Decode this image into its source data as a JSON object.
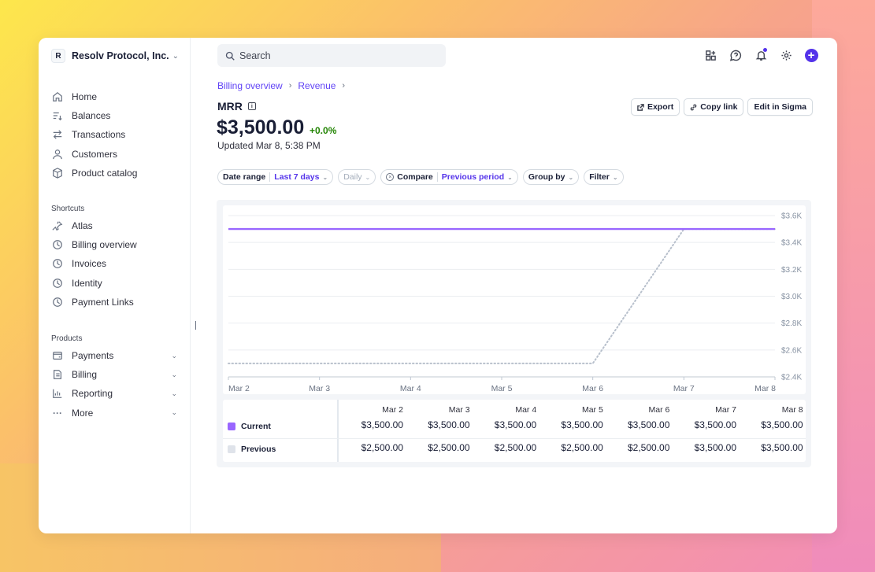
{
  "account": {
    "initial": "R",
    "name": "Resolv Protocol, Inc."
  },
  "nav": [
    {
      "label": "Home",
      "icon": "home-icon"
    },
    {
      "label": "Balances",
      "icon": "balances-icon"
    },
    {
      "label": "Transactions",
      "icon": "transactions-icon"
    },
    {
      "label": "Customers",
      "icon": "customers-icon"
    },
    {
      "label": "Product catalog",
      "icon": "product-catalog-icon"
    }
  ],
  "shortcuts": {
    "title": "Shortcuts",
    "items": [
      {
        "label": "Atlas",
        "icon": "pin-icon"
      },
      {
        "label": "Billing overview",
        "icon": "clock-icon"
      },
      {
        "label": "Invoices",
        "icon": "clock-icon"
      },
      {
        "label": "Identity",
        "icon": "clock-icon"
      },
      {
        "label": "Payment Links",
        "icon": "clock-icon"
      }
    ]
  },
  "products": {
    "title": "Products",
    "items": [
      {
        "label": "Payments",
        "icon": "payments-icon"
      },
      {
        "label": "Billing",
        "icon": "billing-icon"
      },
      {
        "label": "Reporting",
        "icon": "reporting-icon"
      },
      {
        "label": "More",
        "icon": "more-icon"
      }
    ]
  },
  "search": {
    "placeholder": "Search"
  },
  "breadcrumb": {
    "first": "Billing overview",
    "second": "Revenue"
  },
  "metric": {
    "title": "MRR",
    "value": "$3,500.00",
    "change": "+0.0%",
    "updated": "Updated Mar 8, 5:38 PM"
  },
  "actions": {
    "export": "Export",
    "copy_link": "Copy link",
    "edit_sigma": "Edit in Sigma"
  },
  "filters": {
    "date_range_key": "Date range",
    "date_range_value": "Last 7 days",
    "interval": "Daily",
    "compare_key": "Compare",
    "compare_value": "Previous period",
    "group_by": "Group by",
    "filter": "Filter"
  },
  "colors": {
    "accent": "#5433ea",
    "current": "#9966ff",
    "previous": "#c7ced8",
    "positive": "#228403"
  },
  "chart_data": {
    "type": "line",
    "x": [
      "Mar 2",
      "Mar 3",
      "Mar 4",
      "Mar 5",
      "Mar 6",
      "Mar 7",
      "Mar 8"
    ],
    "y_ticks": [
      "$2.4K",
      "$2.6K",
      "$2.8K",
      "$3.0K",
      "$3.2K",
      "$3.4K",
      "$3.6K"
    ],
    "ylim": [
      2400,
      3600
    ],
    "grid": true,
    "series": [
      {
        "name": "Current",
        "values": [
          3500,
          3500,
          3500,
          3500,
          3500,
          3500,
          3500
        ],
        "style": "solid"
      },
      {
        "name": "Previous",
        "values": [
          2500,
          2500,
          2500,
          2500,
          2500,
          3500,
          3500
        ],
        "style": "dotted"
      }
    ]
  },
  "table": {
    "columns": [
      "Mar 2",
      "Mar 3",
      "Mar 4",
      "Mar 5",
      "Mar 6",
      "Mar 7",
      "Mar 8"
    ],
    "rows": [
      {
        "name": "Current",
        "values": [
          "$3,500.00",
          "$3,500.00",
          "$3,500.00",
          "$3,500.00",
          "$3,500.00",
          "$3,500.00",
          "$3,500.00"
        ]
      },
      {
        "name": "Previous",
        "values": [
          "$2,500.00",
          "$2,500.00",
          "$2,500.00",
          "$2,500.00",
          "$2,500.00",
          "$3,500.00",
          "$3,500.00"
        ]
      }
    ]
  }
}
